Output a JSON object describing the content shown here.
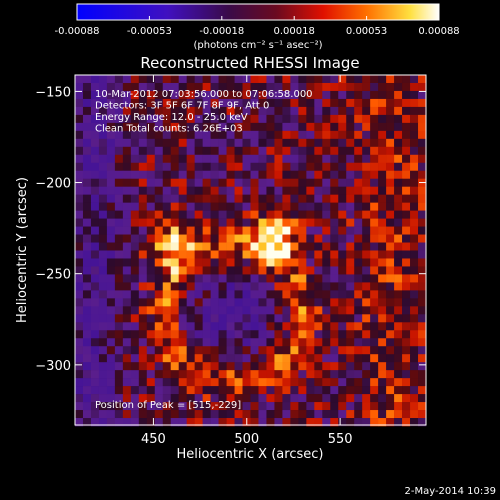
{
  "colorbar": {
    "ticks": [
      "-0.00088",
      "-0.00053",
      "-0.00018",
      "0.00018",
      "0.00053",
      "0.00088"
    ],
    "units": "(photons cm⁻² s⁻¹ asec⁻²)",
    "range": [
      -0.00088,
      0.00088
    ]
  },
  "chart_data": {
    "type": "heatmap",
    "title": "Reconstructed RHESSI Image",
    "xlabel": "Heliocentric X (arcsec)",
    "ylabel": "Heliocentric Y (arcsec)",
    "xlim": [
      408,
      596
    ],
    "ylim": [
      -333,
      -141
    ],
    "xticks": [
      {
        "value": 450,
        "label": "450"
      },
      {
        "value": 500,
        "label": "500"
      },
      {
        "value": 550,
        "label": "550"
      }
    ],
    "yticks": [
      {
        "value": -150,
        "label": "−150"
      },
      {
        "value": -200,
        "label": "−200"
      },
      {
        "value": -250,
        "label": "−250"
      },
      {
        "value": -300,
        "label": "−300"
      }
    ],
    "info_lines": [
      "10-Mar-2012 07:03:56.000 to 07:06:58.000",
      "Detectors: 3F 5F 6F 7F 8F 9F, Att 0",
      "Energy Range: 12.0 - 25.0 keV",
      "Clean     Total counts: 6.26E+03"
    ],
    "peak_label": "Position of Peak = [515,-229]",
    "peak": [
      515,
      -229
    ]
  },
  "footer": {
    "date": "2-May-2014 10:39"
  }
}
